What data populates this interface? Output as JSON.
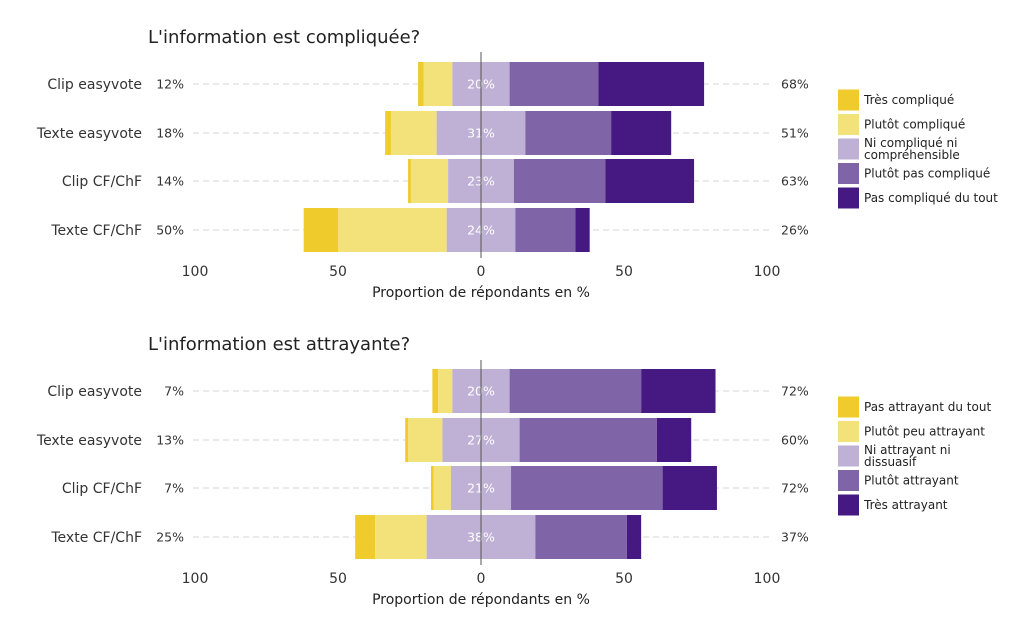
{
  "chart_data": [
    {
      "type": "bar",
      "orientation": "horizontal-diverging",
      "title": "L'information est compliquée?",
      "xlabel": "Proportion de répondants en %",
      "xlim": [
        -100,
        100
      ],
      "xticks": [
        -100,
        -50,
        0,
        50,
        100
      ],
      "xtick_labels": [
        "100",
        "50",
        "0",
        "50",
        "100"
      ],
      "categories": [
        "Clip easyvote",
        "Texte easyvote",
        "Clip CF/ChF",
        "Texte CF/ChF"
      ],
      "left_labels": [
        "12%",
        "18%",
        "14%",
        "50%"
      ],
      "middle_labels": [
        "20%",
        "31%",
        "23%",
        "24%"
      ],
      "right_labels": [
        "68%",
        "51%",
        "63%",
        "26%"
      ],
      "series": [
        {
          "name": "Très compliqué",
          "color": "#EFCB2B",
          "values": [
            2,
            2,
            1,
            12
          ]
        },
        {
          "name": "Plutôt compliqué",
          "color": "#F3E17A",
          "values": [
            10,
            16,
            13,
            38
          ]
        },
        {
          "name": "Ni compliqué ni compréhensible",
          "color": "#BFB0D5",
          "values": [
            20,
            31,
            23,
            24
          ]
        },
        {
          "name": "Plutôt pas compliqué",
          "color": "#8064A8",
          "values": [
            31,
            30,
            32,
            21
          ]
        },
        {
          "name": "Pas compliqué du tout",
          "color": "#451981",
          "values": [
            37,
            21,
            31,
            5
          ]
        }
      ],
      "legend_position": "right",
      "legend_labels": [
        "Très compliqué",
        "Plutôt compliqué",
        [
          "Ni compliqué ni",
          "compréhensible"
        ],
        "Plutôt pas compliqué",
        "Pas compliqué du tout"
      ]
    },
    {
      "type": "bar",
      "orientation": "horizontal-diverging",
      "title": "L'information est attrayante?",
      "xlabel": "Proportion de répondants en %",
      "xlim": [
        -100,
        100
      ],
      "xticks": [
        -100,
        -50,
        0,
        50,
        100
      ],
      "xtick_labels": [
        "100",
        "50",
        "0",
        "50",
        "100"
      ],
      "categories": [
        "Clip easyvote",
        "Texte easyvote",
        "Clip CF/ChF",
        "Texte CF/ChF"
      ],
      "left_labels": [
        "7%",
        "13%",
        "7%",
        "25%"
      ],
      "middle_labels": [
        "20%",
        "27%",
        "21%",
        "38%"
      ],
      "right_labels": [
        "72%",
        "60%",
        "72%",
        "37%"
      ],
      "series": [
        {
          "name": "Pas attrayant du tout",
          "color": "#EFCB2B",
          "values": [
            2,
            1,
            1,
            7
          ]
        },
        {
          "name": "Plutôt peu attrayant",
          "color": "#F3E17A",
          "values": [
            5,
            12,
            6,
            18
          ]
        },
        {
          "name": "Ni attrayant ni dissuasif",
          "color": "#BFB0D5",
          "values": [
            20,
            27,
            21,
            38
          ]
        },
        {
          "name": "Plutôt attrayant",
          "color": "#8064A8",
          "values": [
            46,
            48,
            53,
            32
          ]
        },
        {
          "name": "Très attrayant",
          "color": "#451981",
          "values": [
            26,
            12,
            19,
            5
          ]
        }
      ],
      "legend_position": "right",
      "legend_labels": [
        "Pas attrayant du tout",
        "Plutôt peu attrayant",
        [
          "Ni attrayant ni",
          "dissuasif"
        ],
        "Plutôt attrayant",
        "Très attrayant"
      ]
    }
  ]
}
